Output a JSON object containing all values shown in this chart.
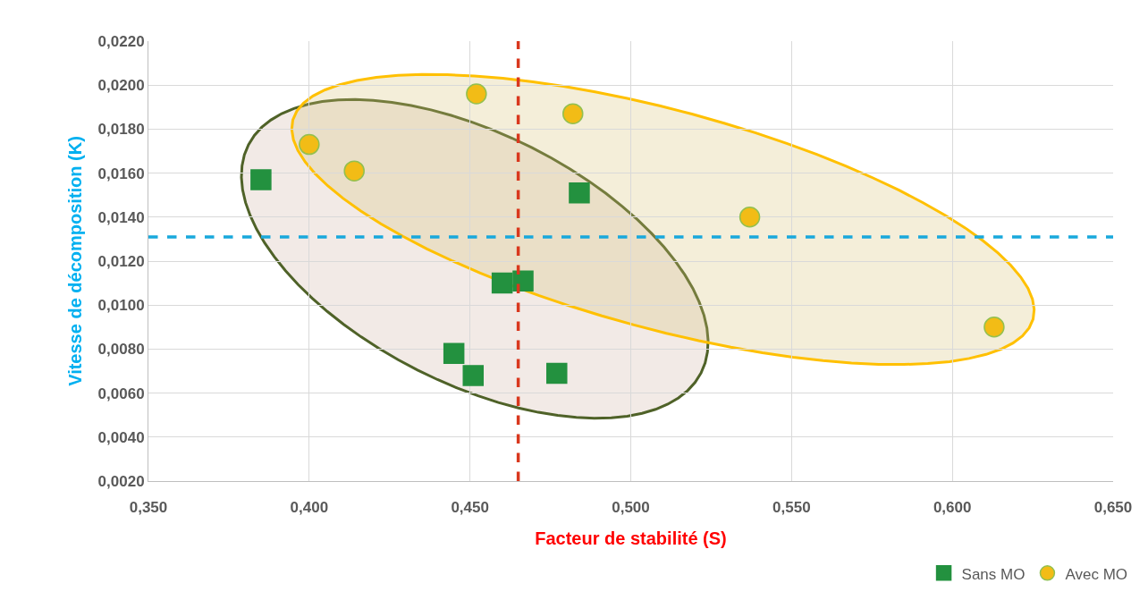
{
  "chart_data": {
    "type": "scatter",
    "xlabel": "Facteur de stabilité (S)",
    "ylabel": "Vitesse de décomposition (K)",
    "series": [
      {
        "name": "Sans MO",
        "color": "#23913f",
        "marker": "square",
        "x": [
          0.385,
          0.484,
          0.46,
          0.4665,
          0.445,
          0.451,
          0.477
        ],
        "values": [
          0.0157,
          0.0151,
          0.011,
          0.0111,
          0.0078,
          0.0068,
          0.0069
        ]
      },
      {
        "name": "Avec MO",
        "color": "#f2bc16",
        "marker": "circle",
        "x": [
          0.4,
          0.414,
          0.452,
          0.482,
          0.537,
          0.613
        ],
        "values": [
          0.0173,
          0.0161,
          0.0196,
          0.0187,
          0.014,
          0.009
        ]
      }
    ],
    "xlim": [
      0.35,
      0.65
    ],
    "xticks": [
      {
        "value": 0.35,
        "label": "0,350"
      },
      {
        "value": 0.4,
        "label": "0,400"
      },
      {
        "value": 0.45,
        "label": "0,450"
      },
      {
        "value": 0.5,
        "label": "0,500"
      },
      {
        "value": 0.55,
        "label": "0,550"
      },
      {
        "value": 0.6,
        "label": "0,600"
      },
      {
        "value": 0.65,
        "label": "0,650"
      }
    ],
    "ylim": [
      0.002,
      0.022
    ],
    "yticks": [
      {
        "value": 0.002,
        "label": "0,0020"
      },
      {
        "value": 0.004,
        "label": "0,0040"
      },
      {
        "value": 0.006,
        "label": "0,0060"
      },
      {
        "value": 0.008,
        "label": "0,0080"
      },
      {
        "value": 0.01,
        "label": "0,0100"
      },
      {
        "value": 0.012,
        "label": "0,0120"
      },
      {
        "value": 0.014,
        "label": "0,0140"
      },
      {
        "value": 0.016,
        "label": "0,0160"
      },
      {
        "value": 0.018,
        "label": "0,0180"
      },
      {
        "value": 0.02,
        "label": "0,0200"
      },
      {
        "value": 0.022,
        "label": "0,0220"
      }
    ],
    "ref_lines": [
      {
        "axis": "y",
        "value": 0.0131,
        "color": "#19a8dc",
        "line_style": "dashed"
      },
      {
        "axis": "x",
        "value": 0.465,
        "color": "#d9381e",
        "line_style": "dashed"
      }
    ],
    "grid": true,
    "legend": "bottom right"
  }
}
